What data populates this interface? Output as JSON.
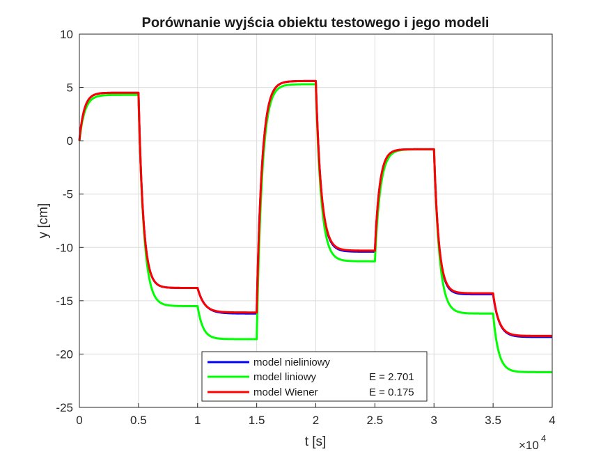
{
  "chart_data": {
    "type": "line",
    "title": "Porównanie wyjścia obiektu testowego i jego modeli",
    "xlabel": "t [s]",
    "ylabel": "y [cm]",
    "x_exponent_label": "×10",
    "x_exponent_power": "4",
    "xlim": [
      0,
      40000
    ],
    "ylim": [
      -25,
      10
    ],
    "xticks": [
      0,
      5000,
      10000,
      15000,
      20000,
      25000,
      30000,
      35000,
      40000
    ],
    "xtick_labels": [
      "0",
      "0.5",
      "1",
      "1.5",
      "2",
      "2.5",
      "3",
      "3.5",
      "4"
    ],
    "yticks": [
      -25,
      -20,
      -15,
      -10,
      -5,
      0,
      5,
      10
    ],
    "ytick_labels": [
      "-25",
      "-20",
      "-15",
      "-10",
      "-5",
      "0",
      "5",
      "10"
    ],
    "grid": true,
    "legend_position": "bottom-center",
    "steps": [
      0,
      5000,
      10000,
      15000,
      20000,
      25000,
      30000,
      35000
    ],
    "series": [
      {
        "name": "model nieliniowy",
        "error_label": "",
        "color": "#0000ff",
        "levels": [
          4.5,
          -13.8,
          -16.2,
          5.6,
          -10.4,
          -0.8,
          -14.4,
          -18.4
        ],
        "tau": [
          400,
          400,
          600,
          450,
          450,
          400,
          400,
          500
        ]
      },
      {
        "name": "model liniowy",
        "error_label": "E = 2.701",
        "color": "#00ff00",
        "levels": [
          4.3,
          -15.5,
          -18.6,
          5.3,
          -11.3,
          -0.8,
          -16.2,
          -21.7
        ],
        "tau": [
          450,
          450,
          450,
          450,
          450,
          450,
          450,
          450
        ]
      },
      {
        "name": "model Wiener",
        "error_label": "E = 0.175",
        "color": "#ff0000",
        "levels": [
          4.5,
          -13.8,
          -16.1,
          5.6,
          -10.3,
          -0.8,
          -14.3,
          -18.3
        ],
        "tau": [
          400,
          400,
          550,
          450,
          450,
          400,
          400,
          480
        ]
      }
    ]
  }
}
